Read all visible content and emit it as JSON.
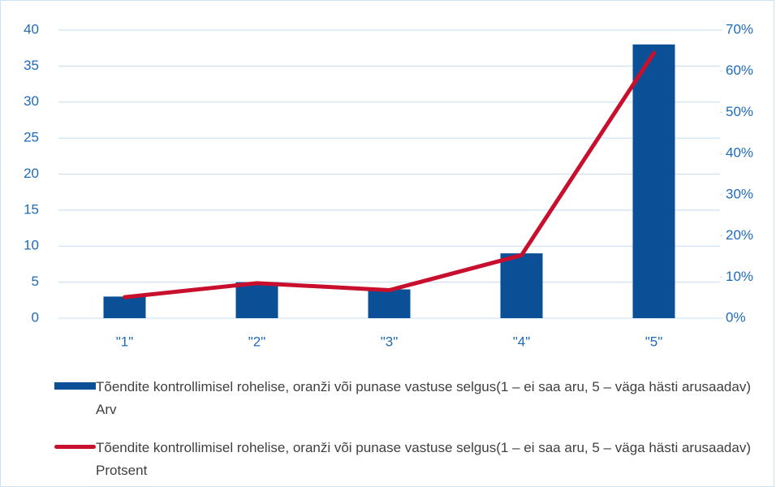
{
  "chart_data": {
    "type": "bar-line",
    "categories": [
      "\"1\"",
      "\"2\"",
      "\"3\"",
      "\"4\"",
      "\"5\""
    ],
    "series": [
      {
        "name": "Tõendite kontrollimisel rohelise, oranži või punase vastuse selgus(1 – ei saa aru, 5 – väga hästi arusaadav) Arv",
        "type": "bar",
        "color": "#0b4f96",
        "values": [
          3,
          5,
          4,
          9,
          38
        ]
      },
      {
        "name": "Tõendite kontrollimisel rohelise, oranži või punase vastuse selgus(1 – ei saa aru, 5 – väga hästi arusaadav) Protsent",
        "type": "line",
        "axis": "y2",
        "color": "#c8102e",
        "values": [
          5.1,
          8.5,
          6.8,
          15.3,
          64.4
        ]
      }
    ],
    "ylim": [
      0,
      40
    ],
    "yticks": [
      0,
      5,
      10,
      15,
      20,
      25,
      30,
      35,
      40
    ],
    "y2lim": [
      0,
      70
    ],
    "y2ticks": [
      {
        "value": 0,
        "label": "0%"
      },
      {
        "value": 10,
        "label": "10%"
      },
      {
        "value": 20,
        "label": "20%"
      },
      {
        "value": 30,
        "label": "30%"
      },
      {
        "value": 40,
        "label": "40%"
      },
      {
        "value": 50,
        "label": "50%"
      },
      {
        "value": 60,
        "label": "60%"
      },
      {
        "value": 70,
        "label": "70%"
      }
    ],
    "grid": true,
    "legend": "bottom"
  }
}
